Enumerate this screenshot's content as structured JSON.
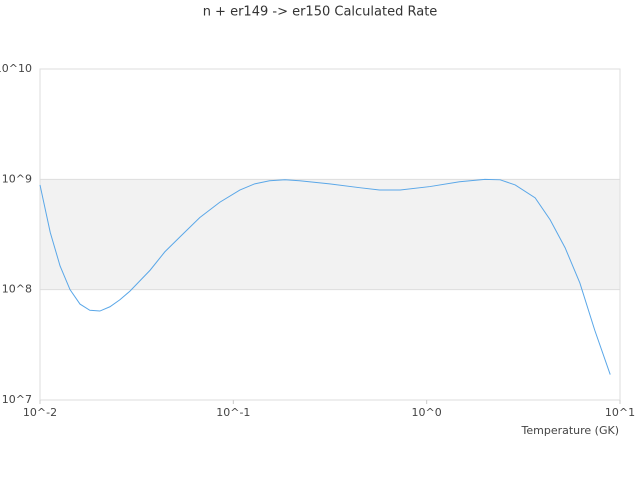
{
  "chart_data": {
    "type": "line",
    "title": "n + er149 -> er150 Calculated Rate",
    "x_label": "Temperature (GK)",
    "log_x": true,
    "log_y": true,
    "grid": true,
    "alternate_bands": true,
    "xlim": [
      0.01,
      10
    ],
    "ylim": [
      10000000,
      10000000000
    ],
    "xticks": [
      {
        "value": 0.01,
        "label": "10^-2"
      },
      {
        "value": 0.1,
        "label": "10^-1"
      },
      {
        "value": 1,
        "label": "10^0"
      },
      {
        "value": 10,
        "label": "10^1"
      }
    ],
    "yticks": [
      {
        "value": 10000000,
        "label": "10^7"
      },
      {
        "value": 100000000,
        "label": "10^8"
      },
      {
        "value": 1000000000,
        "label": "10^9"
      },
      {
        "value": 10000000000,
        "label": "10^10"
      }
    ],
    "series": [
      {
        "color": "#5aa7e8",
        "x": [
          0.01,
          0.0113,
          0.0127,
          0.0143,
          0.0161,
          0.0181,
          0.0204,
          0.023,
          0.0259,
          0.0292,
          0.0371,
          0.0442,
          0.0529,
          0.067,
          0.0851,
          0.108,
          0.129,
          0.154,
          0.185,
          0.22,
          0.315,
          0.45,
          0.57,
          0.73,
          1.04,
          1.48,
          2.0,
          2.4,
          2.87,
          3.64,
          4.35,
          5.2,
          6.2,
          7.4,
          8.9
        ],
        "values": [
          890000000,
          330000000,
          164000000,
          100000000,
          74000000,
          65000000,
          64000000,
          70000000,
          81000000,
          97000000,
          150000000,
          220000000,
          300000000,
          450000000,
          620000000,
          800000000,
          910000000,
          970000000,
          990000000,
          970000000,
          910000000,
          840000000,
          800000000,
          800000000,
          860000000,
          950000000,
          1000000000,
          990000000,
          890000000,
          680000000,
          430000000,
          240000000,
          115000000,
          43000000,
          17000000
        ]
      }
    ]
  }
}
